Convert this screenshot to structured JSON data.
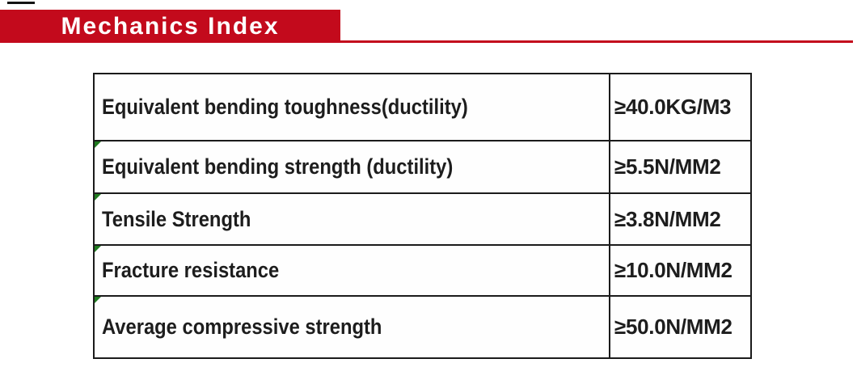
{
  "page": {
    "background": "#ffffff"
  },
  "header": {
    "title": "Mechanics Index",
    "banner_color": "#c30a1c",
    "title_text_color": "#ffffff",
    "accent_line_color": "#131313"
  },
  "table": {
    "border_color": "#1b1b1b",
    "marker_color": "#1f7a1f",
    "marker_icon": "green-corner-triangle",
    "columns": [
      "property",
      "value"
    ],
    "rows": [
      {
        "label": "Equivalent bending toughness(ductility)",
        "value": "≥40.0KG/M3",
        "marker": false
      },
      {
        "label": "Equivalent bending strength (ductility)",
        "value": "≥5.5N/MM2",
        "marker": true
      },
      {
        "label": "Tensile Strength",
        "value": "≥3.8N/MM2",
        "marker": true
      },
      {
        "label": "Fracture resistance",
        "value": "≥10.0N/MM2",
        "marker": true
      },
      {
        "label": "Average compressive strength",
        "value": "≥50.0N/MM2",
        "marker": true
      }
    ]
  }
}
